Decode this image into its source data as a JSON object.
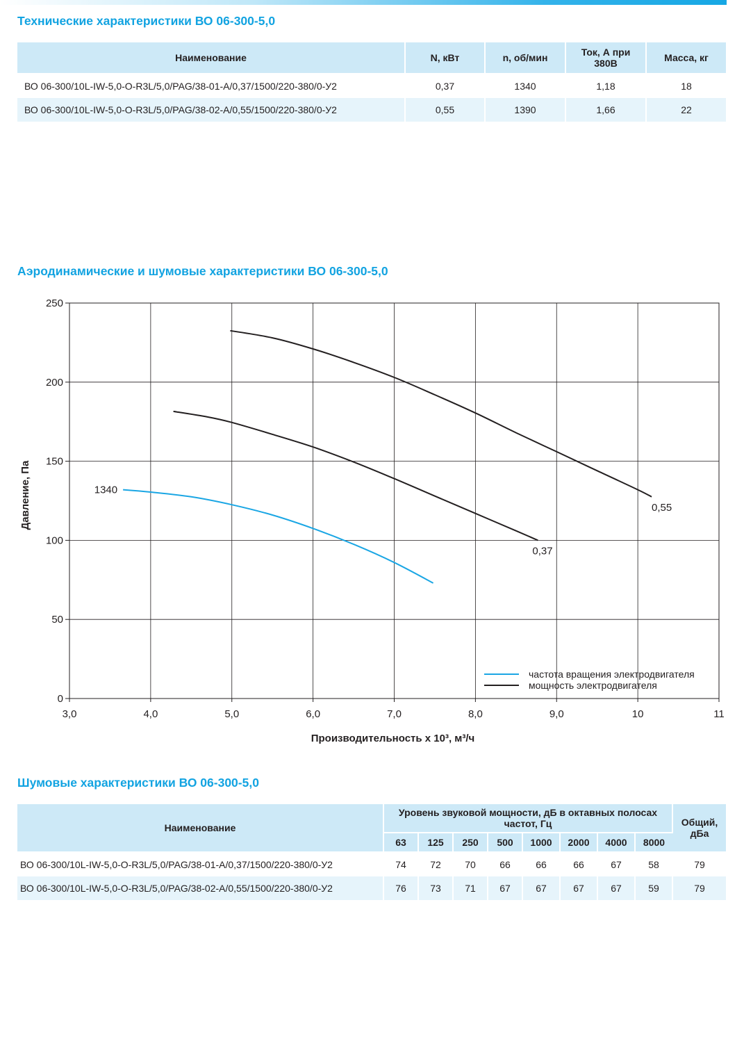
{
  "tech": {
    "title": "Технические характеристики ВО 06-300-5,0",
    "headers": {
      "name": "Наименование",
      "power": "N, кВт",
      "speed": "n, об/мин",
      "current": "Ток, А при 380В",
      "mass": "Масса, кг"
    },
    "rows": [
      {
        "name": "ВО 06-300/10L-IW-5,0-O-R3L/5,0/PAG/38-01-A/0,37/1500/220-380/0-У2",
        "power": "0,37",
        "speed": "1340",
        "current": "1,18",
        "mass": "18"
      },
      {
        "name": "ВО 06-300/10L-IW-5,0-O-R3L/5,0/PAG/38-02-A/0,55/1500/220-380/0-У2",
        "power": "0,55",
        "speed": "1390",
        "current": "1,66",
        "mass": "22"
      }
    ]
  },
  "aero": {
    "title": "Аэродинамические и шумовые характеристики ВО 06-300-5,0"
  },
  "chart_data": {
    "type": "line",
    "title": "",
    "xlabel": "Производительность х 10³, м³/ч",
    "ylabel": "Давление, Па",
    "xlim": [
      3,
      11
    ],
    "ylim": [
      0,
      250
    ],
    "x_ticks": [
      3,
      4,
      5,
      6,
      7,
      8,
      9,
      10,
      11
    ],
    "x_tick_labels": [
      "3,0",
      "4,0",
      "5,0",
      "6,0",
      "7,0",
      "8,0",
      "9,0",
      "10",
      "11"
    ],
    "y_ticks": [
      0,
      50,
      100,
      150,
      200,
      250
    ],
    "y_tick_labels": [
      "0",
      "50",
      "100",
      "150",
      "200",
      "250"
    ],
    "grid": true,
    "legend": {
      "position": "bottom-right",
      "entries": [
        {
          "label": "частота вращения электродвигателя",
          "color": "#1aa6e4"
        },
        {
          "label": "мощность электродвигателя",
          "color": "#231f20"
        }
      ]
    },
    "series": [
      {
        "label": "0,55",
        "color": "#231f20",
        "points": [
          [
            4.98,
            232.5
          ],
          [
            5.5,
            228
          ],
          [
            6.0,
            221
          ],
          [
            6.5,
            212.5
          ],
          [
            7.0,
            203
          ],
          [
            7.5,
            192
          ],
          [
            8.0,
            180.5
          ],
          [
            8.5,
            168
          ],
          [
            9.0,
            156
          ],
          [
            9.5,
            144
          ],
          [
            10.0,
            132
          ],
          [
            10.17,
            127.5
          ]
        ]
      },
      {
        "label": "0,37",
        "color": "#231f20",
        "points": [
          [
            4.28,
            181.5
          ],
          [
            4.7,
            178
          ],
          [
            5.0,
            174.5
          ],
          [
            5.5,
            167
          ],
          [
            6.0,
            159
          ],
          [
            6.5,
            149.5
          ],
          [
            7.0,
            139
          ],
          [
            7.5,
            128
          ],
          [
            8.0,
            117
          ],
          [
            8.5,
            106
          ],
          [
            8.77,
            100
          ]
        ]
      },
      {
        "label": "1340",
        "color": "#1aa6e4",
        "points": [
          [
            3.66,
            132
          ],
          [
            4.0,
            130.5
          ],
          [
            4.5,
            127.5
          ],
          [
            5.0,
            122.5
          ],
          [
            5.5,
            116
          ],
          [
            6.0,
            107.5
          ],
          [
            6.5,
            97.5
          ],
          [
            7.0,
            86
          ],
          [
            7.48,
            73
          ]
        ]
      }
    ]
  },
  "noise": {
    "title": "Шумовые характеристики ВО 06-300-5,0",
    "headers": {
      "name": "Наименование",
      "level": "Уровень звуковой мощности, дБ в октавных полосах частот, Гц",
      "total": "Общий, дБа",
      "bands": [
        "63",
        "125",
        "250",
        "500",
        "1000",
        "2000",
        "4000",
        "8000"
      ]
    },
    "rows": [
      {
        "name": "ВО 06-300/10L-IW-5,0-O-R3L/5,0/PAG/38-01-A/0,37/1500/220-380/0-У2",
        "values": [
          "74",
          "72",
          "70",
          "66",
          "66",
          "66",
          "67",
          "58"
        ],
        "total": "79"
      },
      {
        "name": "ВО 06-300/10L-IW-5,0-O-R3L/5,0/PAG/38-02-A/0,55/1500/220-380/0-У2",
        "values": [
          "76",
          "73",
          "71",
          "67",
          "67",
          "67",
          "67",
          "59"
        ],
        "total": "79"
      }
    ]
  }
}
